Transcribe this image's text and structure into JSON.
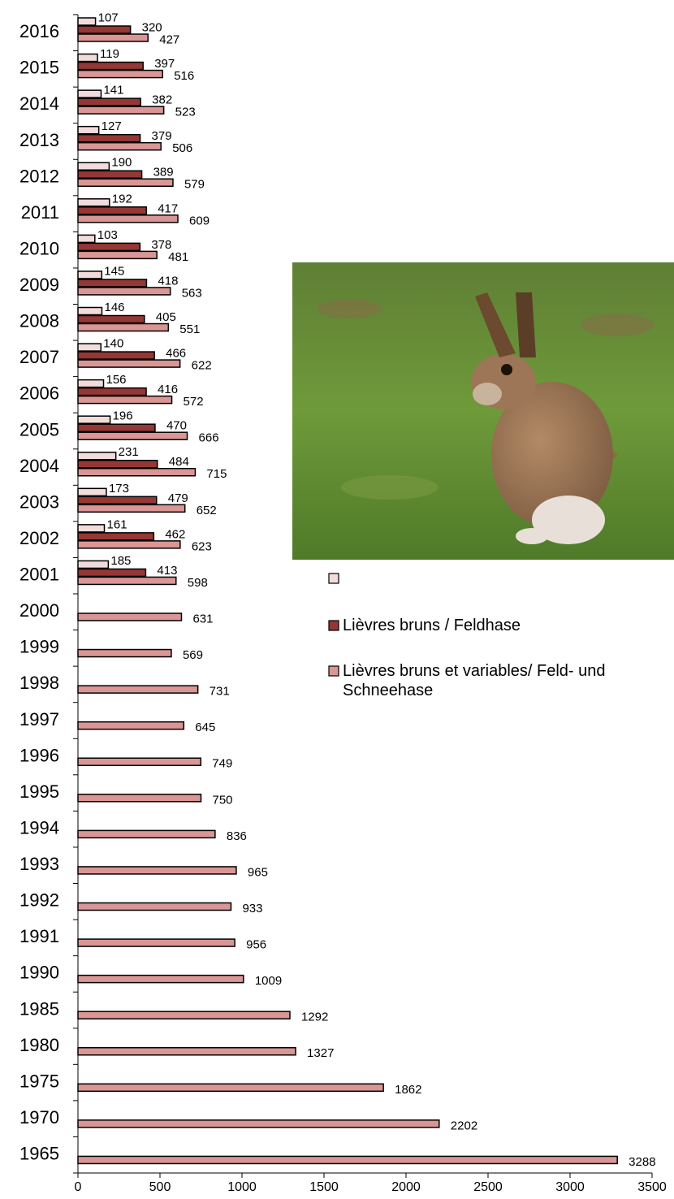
{
  "chart_data": {
    "type": "bar",
    "orientation": "horizontal",
    "categories": [
      "2016",
      "2015",
      "2014",
      "2013",
      "2012",
      "2011",
      "2010",
      "2009",
      "2008",
      "2007",
      "2006",
      "2005",
      "2004",
      "2003",
      "2002",
      "2001",
      "2000",
      "1999",
      "1998",
      "1997",
      "1996",
      "1995",
      "1994",
      "1993",
      "1992",
      "1991",
      "1990",
      "1985",
      "1980",
      "1975",
      "1970",
      "1965"
    ],
    "series": [
      {
        "color": "#f2dcdb",
        "values": [
          107,
          119,
          141,
          127,
          190,
          192,
          103,
          145,
          146,
          140,
          156,
          196,
          231,
          173,
          161,
          185,
          null,
          null,
          null,
          null,
          null,
          null,
          null,
          null,
          null,
          null,
          null,
          null,
          null,
          null,
          null,
          null
        ]
      },
      {
        "name": "Lièvres bruns / Feldhase",
        "color": "#953735",
        "values": [
          320,
          397,
          382,
          379,
          389,
          417,
          378,
          418,
          405,
          466,
          416,
          470,
          484,
          479,
          462,
          413,
          null,
          null,
          null,
          null,
          null,
          null,
          null,
          null,
          null,
          null,
          null,
          null,
          null,
          null,
          null,
          null
        ]
      },
      {
        "name": "Lièvres bruns et variables/ Feld- und Schneehase",
        "color": "#d99694",
        "values": [
          427,
          516,
          523,
          506,
          579,
          609,
          481,
          563,
          551,
          622,
          572,
          666,
          715,
          652,
          623,
          598,
          631,
          569,
          731,
          645,
          749,
          750,
          836,
          965,
          933,
          956,
          1009,
          1292,
          1327,
          1862,
          2202,
          3288
        ]
      }
    ],
    "xlim": [
      0,
      3500
    ],
    "xticks": [
      0,
      500,
      1000,
      1500,
      2000,
      2500,
      3000,
      3500
    ]
  }
}
